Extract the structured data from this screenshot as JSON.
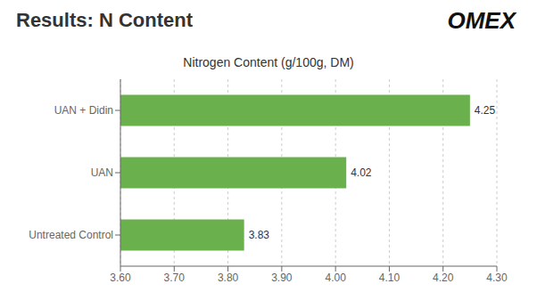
{
  "chart_data": {
    "type": "bar",
    "orientation": "horizontal",
    "title": "Results: N Content",
    "subtitle": "Nitrogen Content (g/100g, DM)",
    "categories": [
      "UAN + Didin",
      "UAN",
      "Untreated Control"
    ],
    "values": [
      4.25,
      4.02,
      3.83
    ],
    "color": "#6ab04c",
    "xlim": [
      3.6,
      4.3
    ],
    "xticks": [
      {
        "value": 3.6,
        "label": "3.60"
      },
      {
        "value": 3.7,
        "label": "3.70"
      },
      {
        "value": 3.8,
        "label": "3.80"
      },
      {
        "value": 3.9,
        "label": "3.90"
      },
      {
        "value": 4.0,
        "label": "4.00"
      },
      {
        "value": 4.1,
        "label": "4.10"
      },
      {
        "value": 4.2,
        "label": "4.20"
      },
      {
        "value": 4.3,
        "label": "4.30"
      }
    ],
    "grid": true,
    "data_labels": true,
    "annotations": [
      "OMEX"
    ]
  }
}
